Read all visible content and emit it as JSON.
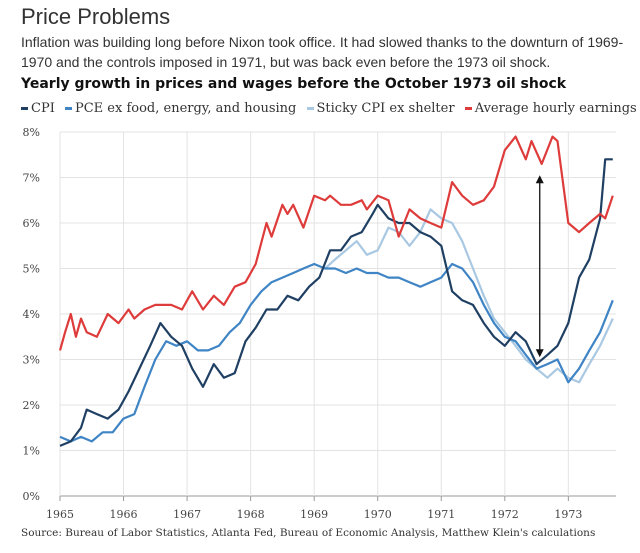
{
  "title": "Price Problems",
  "subtitle": "Inflation was building long before Nixon took office. It had slowed thanks to the downturn of 1969-1970 and the controls imposed in 1971, but was back even before the 1973 oil shock.",
  "heading": "Yearly growth in prices and wages before the October 1973 oil shock",
  "source": "Source: Bureau of Labor Statistics, Atlanta Fed, Bureau of Economic Analysis, Matthew Klein's calculations",
  "chart_data": {
    "type": "line",
    "ylim": [
      0,
      8
    ],
    "xlim": [
      1965,
      1973.75
    ],
    "yticks": [
      "0%",
      "1%",
      "2%",
      "3%",
      "4%",
      "5%",
      "6%",
      "7%",
      "8%"
    ],
    "xticks": [
      "1965",
      "1966",
      "1967",
      "1968",
      "1969",
      "1970",
      "1971",
      "1972",
      "1973"
    ],
    "grid": true,
    "legend_position": "top",
    "annotation": "double-headed arrow near mid-1972 spanning roughly 3% to 7%",
    "series": [
      {
        "name": "CPI",
        "color": "#1f3f63",
        "points": [
          [
            1965.0,
            1.1
          ],
          [
            1965.17,
            1.2
          ],
          [
            1965.33,
            1.5
          ],
          [
            1965.42,
            1.9
          ],
          [
            1965.58,
            1.8
          ],
          [
            1965.75,
            1.7
          ],
          [
            1965.92,
            1.9
          ],
          [
            1966.08,
            2.3
          ],
          [
            1966.25,
            2.8
          ],
          [
            1966.42,
            3.3
          ],
          [
            1966.58,
            3.8
          ],
          [
            1966.75,
            3.5
          ],
          [
            1966.92,
            3.3
          ],
          [
            1967.08,
            2.8
          ],
          [
            1967.25,
            2.4
          ],
          [
            1967.42,
            2.9
          ],
          [
            1967.58,
            2.6
          ],
          [
            1967.75,
            2.7
          ],
          [
            1967.92,
            3.4
          ],
          [
            1968.08,
            3.7
          ],
          [
            1968.25,
            4.1
          ],
          [
            1968.42,
            4.1
          ],
          [
            1968.58,
            4.4
          ],
          [
            1968.75,
            4.3
          ],
          [
            1968.92,
            4.6
          ],
          [
            1969.08,
            4.8
          ],
          [
            1969.25,
            5.4
          ],
          [
            1969.42,
            5.4
          ],
          [
            1969.58,
            5.7
          ],
          [
            1969.75,
            5.8
          ],
          [
            1969.92,
            6.2
          ],
          [
            1970.0,
            6.4
          ],
          [
            1970.17,
            6.1
          ],
          [
            1970.33,
            6.0
          ],
          [
            1970.5,
            6.0
          ],
          [
            1970.67,
            5.8
          ],
          [
            1970.83,
            5.7
          ],
          [
            1971.0,
            5.5
          ],
          [
            1971.17,
            4.5
          ],
          [
            1971.33,
            4.3
          ],
          [
            1971.5,
            4.2
          ],
          [
            1971.67,
            3.8
          ],
          [
            1971.83,
            3.5
          ],
          [
            1972.0,
            3.3
          ],
          [
            1972.17,
            3.6
          ],
          [
            1972.33,
            3.4
          ],
          [
            1972.5,
            2.9
          ],
          [
            1972.67,
            3.1
          ],
          [
            1972.83,
            3.3
          ],
          [
            1973.0,
            3.8
          ],
          [
            1973.17,
            4.8
          ],
          [
            1973.33,
            5.2
          ],
          [
            1973.5,
            6.1
          ],
          [
            1973.58,
            7.4
          ],
          [
            1973.7,
            7.4
          ]
        ]
      },
      {
        "name": "PCE ex food, energy, and housing",
        "color": "#3f84c4",
        "points": [
          [
            1965.0,
            1.3
          ],
          [
            1965.17,
            1.2
          ],
          [
            1965.33,
            1.3
          ],
          [
            1965.5,
            1.2
          ],
          [
            1965.67,
            1.4
          ],
          [
            1965.83,
            1.4
          ],
          [
            1966.0,
            1.7
          ],
          [
            1966.17,
            1.8
          ],
          [
            1966.33,
            2.4
          ],
          [
            1966.5,
            3.0
          ],
          [
            1966.67,
            3.4
          ],
          [
            1966.83,
            3.3
          ],
          [
            1967.0,
            3.4
          ],
          [
            1967.17,
            3.2
          ],
          [
            1967.33,
            3.2
          ],
          [
            1967.5,
            3.3
          ],
          [
            1967.67,
            3.6
          ],
          [
            1967.83,
            3.8
          ],
          [
            1968.0,
            4.2
          ],
          [
            1968.17,
            4.5
          ],
          [
            1968.33,
            4.7
          ],
          [
            1968.5,
            4.8
          ],
          [
            1968.67,
            4.9
          ],
          [
            1968.83,
            5.0
          ],
          [
            1969.0,
            5.1
          ],
          [
            1969.17,
            5.0
          ],
          [
            1969.33,
            5.0
          ],
          [
            1969.5,
            4.9
          ],
          [
            1969.67,
            5.0
          ],
          [
            1969.83,
            4.9
          ],
          [
            1970.0,
            4.9
          ],
          [
            1970.17,
            4.8
          ],
          [
            1970.33,
            4.8
          ],
          [
            1970.5,
            4.7
          ],
          [
            1970.67,
            4.6
          ],
          [
            1970.83,
            4.7
          ],
          [
            1971.0,
            4.8
          ],
          [
            1971.17,
            5.1
          ],
          [
            1971.33,
            5.0
          ],
          [
            1971.5,
            4.7
          ],
          [
            1971.67,
            4.2
          ],
          [
            1971.83,
            3.8
          ],
          [
            1972.0,
            3.5
          ],
          [
            1972.17,
            3.4
          ],
          [
            1972.33,
            3.1
          ],
          [
            1972.5,
            2.8
          ],
          [
            1972.67,
            2.9
          ],
          [
            1972.83,
            3.0
          ],
          [
            1973.0,
            2.5
          ],
          [
            1973.17,
            2.8
          ],
          [
            1973.33,
            3.2
          ],
          [
            1973.5,
            3.6
          ],
          [
            1973.7,
            4.3
          ]
        ]
      },
      {
        "name": "Sticky CPI ex shelter",
        "color": "#a9c8e2",
        "points": [
          [
            1969.17,
            5.0
          ],
          [
            1969.33,
            5.2
          ],
          [
            1969.5,
            5.4
          ],
          [
            1969.67,
            5.6
          ],
          [
            1969.83,
            5.3
          ],
          [
            1970.0,
            5.4
          ],
          [
            1970.17,
            5.9
          ],
          [
            1970.33,
            5.8
          ],
          [
            1970.5,
            5.5
          ],
          [
            1970.67,
            5.8
          ],
          [
            1970.83,
            6.3
          ],
          [
            1971.0,
            6.1
          ],
          [
            1971.17,
            6.0
          ],
          [
            1971.33,
            5.6
          ],
          [
            1971.5,
            5.0
          ],
          [
            1971.67,
            4.4
          ],
          [
            1971.83,
            3.9
          ],
          [
            1972.0,
            3.6
          ],
          [
            1972.17,
            3.3
          ],
          [
            1972.33,
            3.0
          ],
          [
            1972.5,
            2.8
          ],
          [
            1972.67,
            2.6
          ],
          [
            1972.83,
            2.8
          ],
          [
            1973.0,
            2.6
          ],
          [
            1973.17,
            2.5
          ],
          [
            1973.33,
            2.9
          ],
          [
            1973.5,
            3.3
          ],
          [
            1973.7,
            3.9
          ]
        ]
      },
      {
        "name": "Average hourly earnings",
        "color": "#de3b3b",
        "points": [
          [
            1965.0,
            3.2
          ],
          [
            1965.08,
            3.6
          ],
          [
            1965.17,
            4.0
          ],
          [
            1965.25,
            3.5
          ],
          [
            1965.33,
            3.9
          ],
          [
            1965.42,
            3.6
          ],
          [
            1965.58,
            3.5
          ],
          [
            1965.75,
            4.0
          ],
          [
            1965.92,
            3.8
          ],
          [
            1966.08,
            4.1
          ],
          [
            1966.17,
            3.9
          ],
          [
            1966.33,
            4.1
          ],
          [
            1966.5,
            4.2
          ],
          [
            1966.75,
            4.2
          ],
          [
            1966.92,
            4.1
          ],
          [
            1967.08,
            4.5
          ],
          [
            1967.25,
            4.1
          ],
          [
            1967.42,
            4.4
          ],
          [
            1967.58,
            4.2
          ],
          [
            1967.75,
            4.6
          ],
          [
            1967.92,
            4.7
          ],
          [
            1968.08,
            5.1
          ],
          [
            1968.25,
            6.0
          ],
          [
            1968.33,
            5.7
          ],
          [
            1968.5,
            6.4
          ],
          [
            1968.58,
            6.2
          ],
          [
            1968.67,
            6.4
          ],
          [
            1968.83,
            5.9
          ],
          [
            1969.0,
            6.6
          ],
          [
            1969.17,
            6.5
          ],
          [
            1969.25,
            6.6
          ],
          [
            1969.42,
            6.4
          ],
          [
            1969.58,
            6.4
          ],
          [
            1969.75,
            6.5
          ],
          [
            1969.83,
            6.3
          ],
          [
            1970.0,
            6.6
          ],
          [
            1970.17,
            6.5
          ],
          [
            1970.33,
            5.7
          ],
          [
            1970.5,
            6.3
          ],
          [
            1970.67,
            6.1
          ],
          [
            1970.83,
            6.0
          ],
          [
            1971.0,
            5.9
          ],
          [
            1971.17,
            6.9
          ],
          [
            1971.33,
            6.6
          ],
          [
            1971.5,
            6.4
          ],
          [
            1971.67,
            6.5
          ],
          [
            1971.83,
            6.8
          ],
          [
            1972.0,
            7.6
          ],
          [
            1972.17,
            7.9
          ],
          [
            1972.33,
            7.4
          ],
          [
            1972.42,
            7.8
          ],
          [
            1972.58,
            7.3
          ],
          [
            1972.75,
            7.9
          ],
          [
            1972.83,
            7.8
          ],
          [
            1973.0,
            6.0
          ],
          [
            1973.17,
            5.8
          ],
          [
            1973.33,
            6.0
          ],
          [
            1973.5,
            6.2
          ],
          [
            1973.58,
            6.1
          ],
          [
            1973.7,
            6.6
          ]
        ]
      }
    ]
  }
}
